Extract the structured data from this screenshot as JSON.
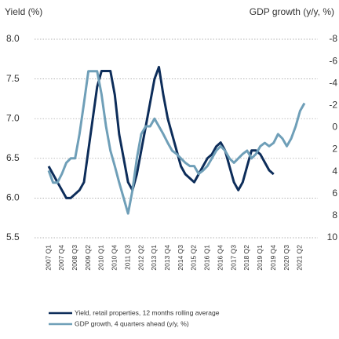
{
  "chart_data": {
    "type": "line",
    "y_label": "Yield (%)",
    "y2_label": "GDP growth (y/y, %)",
    "categories": [
      "2007 Q1",
      null,
      null,
      "2007 Q4",
      null,
      null,
      "2008 Q3",
      null,
      null,
      "2009 Q2",
      null,
      null,
      "2010 Q1",
      null,
      null,
      "2010 Q4",
      null,
      null,
      "2011 Q3",
      null,
      null,
      "2012 Q2",
      null,
      null,
      "2013 Q1",
      null,
      null,
      "2013 Q4",
      null,
      null,
      "2014 Q3",
      null,
      null,
      "2015 Q2",
      null,
      null,
      "2016 Q1",
      null,
      null,
      "2016 Q4",
      null,
      null,
      "2017 Q3",
      null,
      null,
      "2018 Q2",
      null,
      null,
      "2019 Q1",
      null,
      null,
      "2019 Q4",
      null,
      null,
      "2020 Q3",
      null,
      null,
      "2021 Q2",
      null
    ],
    "series": [
      {
        "name": "Yield, retail properties, 12 months rolling average",
        "color": "#0d2d5a",
        "axis": "y",
        "values": [
          6.4,
          6.3,
          6.2,
          6.1,
          6.0,
          6.0,
          6.05,
          6.1,
          6.2,
          6.6,
          7.0,
          7.4,
          7.6,
          7.6,
          7.6,
          7.3,
          6.8,
          6.5,
          6.2,
          6.1,
          6.3,
          6.6,
          6.9,
          7.2,
          7.5,
          7.65,
          7.3,
          7.0,
          6.8,
          6.6,
          6.4,
          6.3,
          6.25,
          6.2,
          6.3,
          6.4,
          6.5,
          6.55,
          6.65,
          6.7,
          6.6,
          6.4,
          6.2,
          6.1,
          6.2,
          6.4,
          6.6,
          6.6,
          6.55,
          6.45,
          6.35,
          6.3,
          null,
          null,
          null,
          null,
          null,
          null,
          null
        ]
      },
      {
        "name": "GDP growth, 4 quarters ahead (y/y, %)",
        "color": "#6f9fb8",
        "axis": "y2",
        "values": [
          3.9,
          5.0,
          5.0,
          4.2,
          3.2,
          2.8,
          2.8,
          0.6,
          -2.2,
          -5.1,
          -5.1,
          -5.1,
          -3.0,
          -0.1,
          2.1,
          3.5,
          5.0,
          6.4,
          7.8,
          5.7,
          2.8,
          0.6,
          -0.1,
          -0.1,
          -0.8,
          -0.1,
          0.6,
          1.4,
          2.1,
          2.4,
          2.8,
          3.2,
          3.5,
          3.5,
          4.2,
          3.9,
          3.5,
          2.8,
          2.1,
          1.7,
          2.1,
          2.8,
          3.2,
          2.8,
          2.4,
          2.1,
          2.8,
          2.4,
          1.7,
          1.4,
          1.7,
          1.4,
          0.6,
          1.0,
          1.7,
          1.0,
          -0.1,
          -1.5,
          -2.2
        ]
      }
    ],
    "ylim": [
      5.5,
      8.0
    ],
    "yticks": [
      5.5,
      {
        "value": 6,
        "label": "6.0"
      },
      6.5,
      {
        "value": 7,
        "label": "7.0"
      },
      7.5,
      {
        "value": 8,
        "label": "8.0"
      }
    ],
    "y2lim": [
      -8,
      10
    ],
    "y2ticks": [
      -8,
      -6,
      -4,
      -2,
      0,
      2,
      4,
      6,
      8,
      10
    ],
    "grid": true
  }
}
